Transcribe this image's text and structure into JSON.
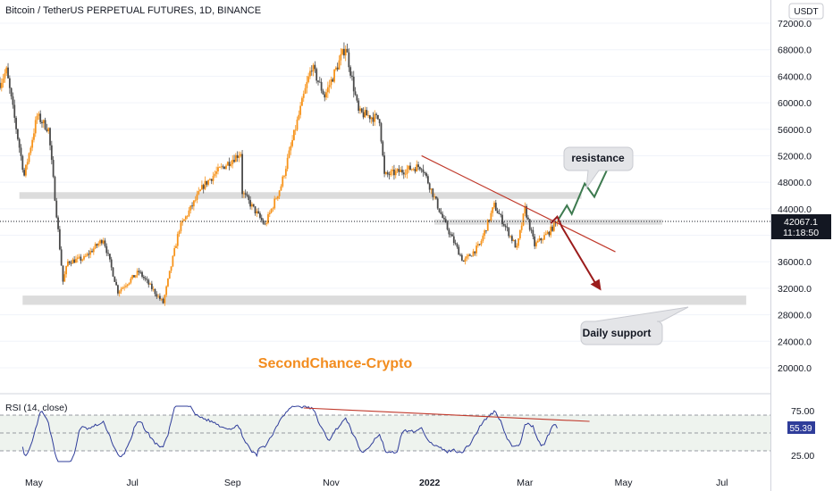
{
  "header": {
    "title": "Bitcoin / TetherUS PERPETUAL FUTURES, 1D, BINANCE",
    "currency_button": "USDT"
  },
  "price_axis": {
    "ticks": [
      "72000.0",
      "68000.0",
      "64000.0",
      "60000.0",
      "56000.0",
      "52000.0",
      "48000.0",
      "44000.0",
      "40000.0",
      "36000.0",
      "32000.0",
      "28000.0",
      "24000.0",
      "20000.0"
    ],
    "last_price": "42067.1",
    "countdown": "11:18:50"
  },
  "time_axis": {
    "labels": [
      "May",
      "Jul",
      "Sep",
      "Nov",
      "2022",
      "Mar",
      "May",
      "Jul"
    ]
  },
  "annotations": {
    "resistance": "resistance",
    "support": "Daily support",
    "watermark": "SecondChance-Crypto"
  },
  "rsi": {
    "label": "RSI (14, close)",
    "ticks": [
      "75.00",
      "25.00"
    ],
    "last_value": "55.39"
  },
  "colors": {
    "up": "#f7931a",
    "down": "#4a4a4a",
    "rsi_line": "#2f3d9a",
    "trendline": "#c0392b",
    "bull_arrow": "#3d7a4f",
    "bear_arrow": "#9b1c1c",
    "zone": "#dcdcdc",
    "watermark": "#f28c1e",
    "last_price_bg": "#131722"
  },
  "chart_data": {
    "type": "candlestick",
    "title": "Bitcoin / TetherUS PERPETUAL FUTURES, 1D, BINANCE",
    "ylim": [
      17000,
      74000
    ],
    "x_range": [
      "2021-04-10",
      "2022-07-31"
    ],
    "anchors": [
      {
        "date": "2021-04-10",
        "price": 63000
      },
      {
        "date": "2021-04-14",
        "price": 64800
      },
      {
        "date": "2021-04-25",
        "price": 49000
      },
      {
        "date": "2021-05-03",
        "price": 58000
      },
      {
        "date": "2021-05-10",
        "price": 56000
      },
      {
        "date": "2021-05-19",
        "price": 33000
      },
      {
        "date": "2021-05-22",
        "price": 36000
      },
      {
        "date": "2021-06-01",
        "price": 36500
      },
      {
        "date": "2021-06-13",
        "price": 39500
      },
      {
        "date": "2021-06-22",
        "price": 31500
      },
      {
        "date": "2021-07-05",
        "price": 34500
      },
      {
        "date": "2021-07-20",
        "price": 29800
      },
      {
        "date": "2021-07-30",
        "price": 41000
      },
      {
        "date": "2021-08-14",
        "price": 47500
      },
      {
        "date": "2021-08-22",
        "price": 49500
      },
      {
        "date": "2021-09-06",
        "price": 52500
      },
      {
        "date": "2021-09-07",
        "price": 46500
      },
      {
        "date": "2021-09-21",
        "price": 41500
      },
      {
        "date": "2021-10-01",
        "price": 47500
      },
      {
        "date": "2021-10-15",
        "price": 61000
      },
      {
        "date": "2021-10-20",
        "price": 65500
      },
      {
        "date": "2021-10-28",
        "price": 61000
      },
      {
        "date": "2021-11-10",
        "price": 68500
      },
      {
        "date": "2021-11-18",
        "price": 58500
      },
      {
        "date": "2021-12-01",
        "price": 57500
      },
      {
        "date": "2021-12-04",
        "price": 49000
      },
      {
        "date": "2021-12-27",
        "price": 50500
      },
      {
        "date": "2022-01-10",
        "price": 42000
      },
      {
        "date": "2022-01-22",
        "price": 36000
      },
      {
        "date": "2022-02-01",
        "price": 38500
      },
      {
        "date": "2022-02-10",
        "price": 44500
      },
      {
        "date": "2022-02-24",
        "price": 38000
      },
      {
        "date": "2022-03-01",
        "price": 44000
      },
      {
        "date": "2022-03-07",
        "price": 38500
      },
      {
        "date": "2022-03-16",
        "price": 40500
      },
      {
        "date": "2022-03-21",
        "price": 42067
      }
    ],
    "support_zone": [
      29500,
      30900
    ],
    "upper_zone": [
      45500,
      46500
    ],
    "mid_zone": [
      41600,
      42400
    ],
    "resistance_line": {
      "from": {
        "date": "2021-12-27",
        "price": 52000
      },
      "to": {
        "date": "2022-04-26",
        "price": 37500
      }
    },
    "rsi": {
      "label": "RSI (14, close)",
      "levels": [
        70,
        50,
        30
      ],
      "ylim": [
        10,
        90
      ],
      "last": 55.39,
      "trendline": {
        "from": {
          "date": "2021-10-15",
          "value": 78
        },
        "to": {
          "date": "2022-04-10",
          "value": 63
        }
      }
    }
  }
}
